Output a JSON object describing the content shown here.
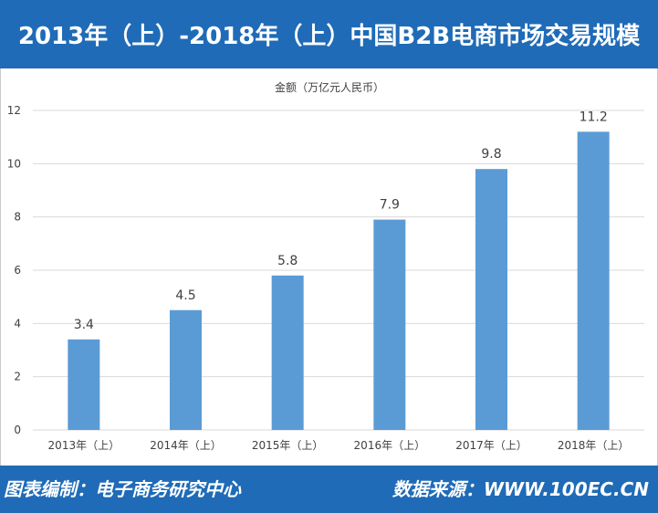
{
  "header": {
    "title": "2013年（上）-2018年（上）中国B2B电商市场交易规模"
  },
  "footer": {
    "source_credit": "图表编制：电子商务研究中心",
    "data_source": "数据来源：WWW.100EC.CN"
  },
  "colors": {
    "header_bg": "#1f6bb7",
    "bar": "#5b9bd5",
    "grid": "#d9d9d9",
    "axis_text": "#404040"
  },
  "chart_data": {
    "type": "bar",
    "title": "金额（万亿元人民币）",
    "categories": [
      "2013年（上）",
      "2014年（上）",
      "2015年（上）",
      "2016年（上）",
      "2017年（上）",
      "2018年（上）"
    ],
    "values": [
      3.4,
      4.5,
      5.8,
      7.9,
      9.8,
      11.2
    ],
    "data_labels": [
      "3.4",
      "4.5",
      "5.8",
      "7.9",
      "9.8",
      "11.2"
    ],
    "y_ticks": [
      "0",
      "2",
      "4",
      "6",
      "8",
      "10",
      "12"
    ],
    "ylim": [
      0,
      12
    ],
    "grid": true,
    "legend": "none"
  }
}
